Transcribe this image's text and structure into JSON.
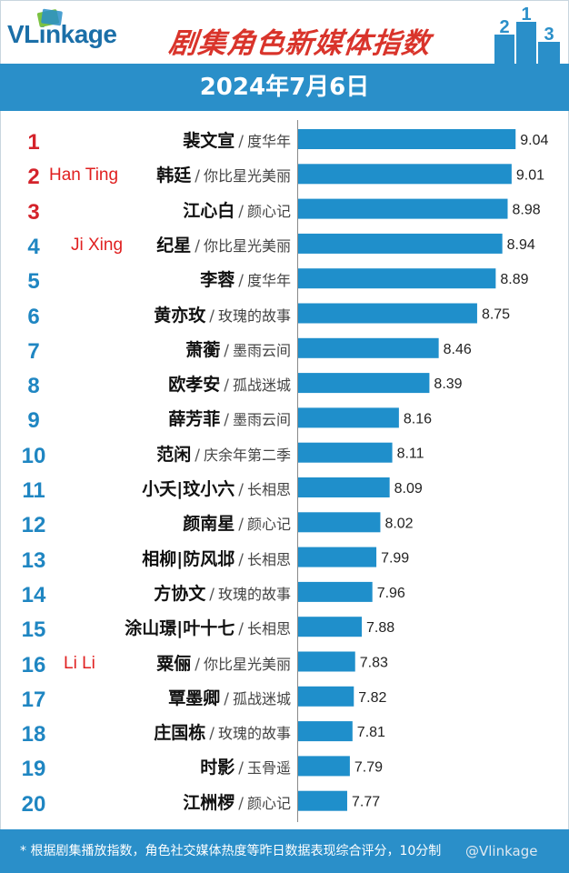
{
  "header": {
    "brand": "VLinkage",
    "title": "剧集角色新媒体指数",
    "podium": [
      "2",
      "1",
      "3"
    ],
    "date": "2024年7月6日"
  },
  "colors": {
    "brand_blue": "#2a8fc9",
    "bar": "#1f8fcb",
    "rank_top": "#d4232b",
    "rank_rest": "#1f86c2",
    "title_red": "#d9342b",
    "annotation_red": "#e02020"
  },
  "annotations": [
    {
      "row": 1,
      "text": "Han Ting"
    },
    {
      "row": 3,
      "text": "Ji Xing"
    },
    {
      "row": 15,
      "text": "Li Li"
    }
  ],
  "chart_data": {
    "type": "bar",
    "orientation": "horizontal",
    "title": "剧集角色新媒体指数",
    "subtitle": "2024年7月6日",
    "xlim": [
      7.4,
      9.1
    ],
    "grid": false,
    "rows": [
      {
        "rank": "1",
        "name": "裴文宣",
        "show": "度华年",
        "value": 9.04,
        "value_label": "9.04"
      },
      {
        "rank": "2",
        "name": "韩廷",
        "show": "你比星光美丽",
        "value": 9.01,
        "value_label": "9.01"
      },
      {
        "rank": "3",
        "name": "江心白",
        "show": "颜心记",
        "value": 8.98,
        "value_label": "8.98"
      },
      {
        "rank": "4",
        "name": "纪星",
        "show": "你比星光美丽",
        "value": 8.94,
        "value_label": "8.94"
      },
      {
        "rank": "5",
        "name": "李蓉",
        "show": "度华年",
        "value": 8.89,
        "value_label": "8.89"
      },
      {
        "rank": "6",
        "name": "黄亦玫",
        "show": "玫瑰的故事",
        "value": 8.75,
        "value_label": "8.75"
      },
      {
        "rank": "7",
        "name": "萧蘅",
        "show": "墨雨云间",
        "value": 8.46,
        "value_label": "8.46"
      },
      {
        "rank": "8",
        "name": "欧孝安",
        "show": "孤战迷城",
        "value": 8.39,
        "value_label": "8.39"
      },
      {
        "rank": "9",
        "name": "薛芳菲",
        "show": "墨雨云间",
        "value": 8.16,
        "value_label": "8.16"
      },
      {
        "rank": "10",
        "name": "范闲",
        "show": "庆余年第二季",
        "value": 8.11,
        "value_label": "8.11"
      },
      {
        "rank": "11",
        "name": "小夭|玟小六",
        "show": "长相思",
        "value": 8.09,
        "value_label": "8.09"
      },
      {
        "rank": "12",
        "name": "颜南星",
        "show": "颜心记",
        "value": 8.02,
        "value_label": "8.02"
      },
      {
        "rank": "13",
        "name": "相柳|防风邶",
        "show": "长相思",
        "value": 7.99,
        "value_label": "7.99"
      },
      {
        "rank": "14",
        "name": "方协文",
        "show": "玫瑰的故事",
        "value": 7.96,
        "value_label": "7.96"
      },
      {
        "rank": "15",
        "name": "涂山璟|叶十七",
        "show": "长相思",
        "value": 7.88,
        "value_label": "7.88"
      },
      {
        "rank": "16",
        "name": "粟俪",
        "show": "你比星光美丽",
        "value": 7.83,
        "value_label": "7.83"
      },
      {
        "rank": "17",
        "name": "覃墨卿",
        "show": "孤战迷城",
        "value": 7.82,
        "value_label": "7.82"
      },
      {
        "rank": "18",
        "name": "庄国栋",
        "show": "玫瑰的故事",
        "value": 7.81,
        "value_label": "7.81"
      },
      {
        "rank": "19",
        "name": "时影",
        "show": "玉骨遥",
        "value": 7.79,
        "value_label": "7.79"
      },
      {
        "rank": "20",
        "name": "江栦椤",
        "show": "颜心记",
        "value": 7.77,
        "value_label": "7.77"
      }
    ]
  },
  "footer": {
    "note": "* 根据剧集播放指数，角色社交媒体热度等昨日数据表现综合评分，10分制",
    "watermark": "@Vlinkage"
  }
}
